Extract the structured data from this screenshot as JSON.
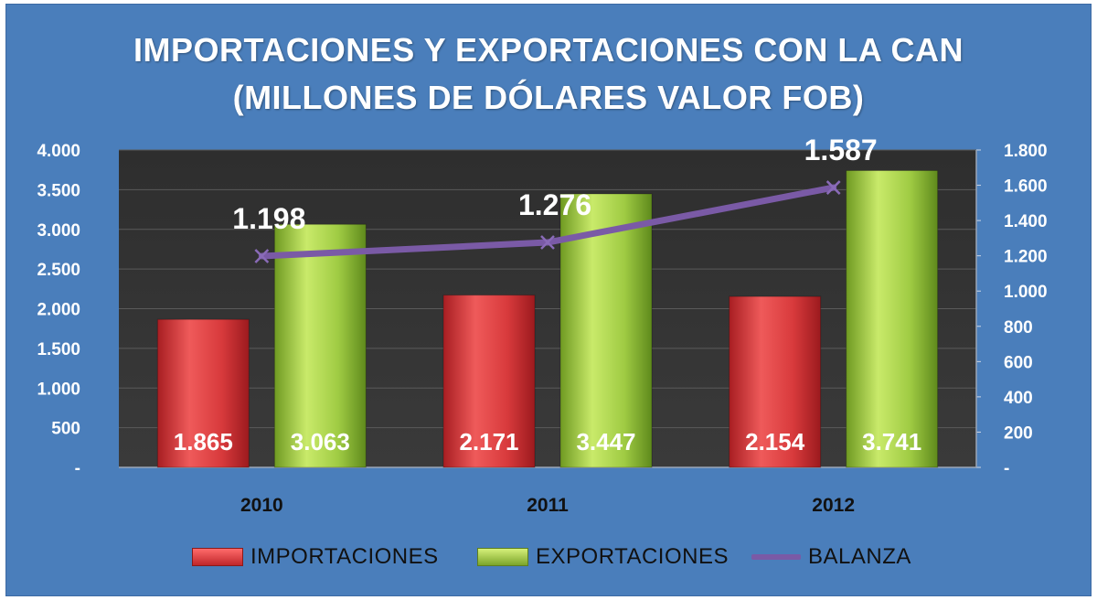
{
  "chart_data": {
    "type": "bar",
    "title": "IMPORTACIONES Y EXPORTACIONES  CON LA CAN",
    "subtitle": "(MILLONES DE DÓLARES VALOR FOB)",
    "categories": [
      "2010",
      "2011",
      "2012"
    ],
    "series": [
      {
        "name": "IMPORTACIONES",
        "type": "bar",
        "axis": "left",
        "values": [
          1865,
          2171,
          2154
        ],
        "labels": [
          "1.865",
          "2.171",
          "2.154"
        ],
        "color": "#d0383a"
      },
      {
        "name": "EXPORTACIONES",
        "type": "bar",
        "axis": "left",
        "values": [
          3063,
          3447,
          3741
        ],
        "labels": [
          "3.063",
          "3.447",
          "3.741"
        ],
        "color": "#9bc53d"
      },
      {
        "name": "BALANZA",
        "type": "line",
        "axis": "right",
        "values": [
          1198,
          1276,
          1587
        ],
        "labels": [
          "1.198",
          "1.276",
          "1.587"
        ],
        "color": "#7a5aa6"
      }
    ],
    "y_left": {
      "ylim": [
        0,
        4000
      ],
      "ticks": [
        "-",
        "500",
        "1.000",
        "1.500",
        "2.000",
        "2.500",
        "3.000",
        "3.500",
        "4.000"
      ]
    },
    "y_right": {
      "ylim": [
        0,
        1800
      ],
      "ticks": [
        "-",
        "200",
        "400",
        "600",
        "800",
        "1.000",
        "1.200",
        "1.400",
        "1.600",
        "1.800"
      ]
    },
    "grid": true,
    "legend": "bottom",
    "background": "#4a7ebb",
    "plot_background": "#333333"
  }
}
